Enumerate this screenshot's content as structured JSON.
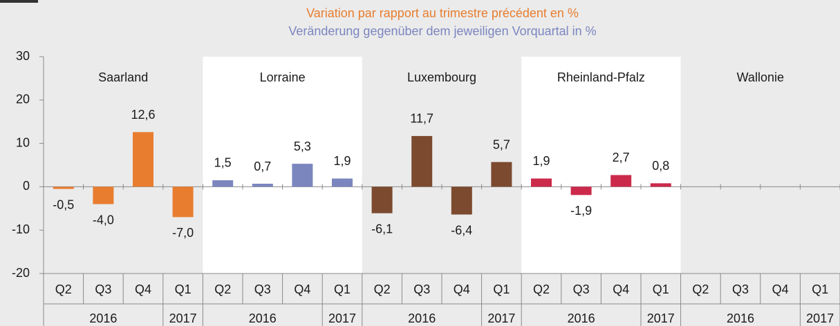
{
  "chart_data": {
    "type": "bar",
    "title": "Variation par rapport au trimestre précédent en %",
    "subtitle": "Veränderung gegenüber dem jeweiligen Vorquartal in %",
    "title_color": "#e87d2f",
    "subtitle_color": "#7b86bf",
    "ylim": [
      -20,
      30
    ],
    "yticks": [
      -20,
      -10,
      0,
      10,
      20,
      30
    ],
    "groups": [
      {
        "name": "Saarland",
        "color": "#e87d2f",
        "categories": [
          "Q2",
          "Q3",
          "Q4",
          "Q1"
        ],
        "years": [
          "2016",
          "2017"
        ],
        "values": [
          -0.5,
          -4.0,
          12.6,
          -7.0
        ],
        "value_labels": [
          "-0,5",
          "-4,0",
          "12,6",
          "-7,0"
        ]
      },
      {
        "name": "Lorraine",
        "color": "#7b86bf",
        "categories": [
          "Q2",
          "Q3",
          "Q4",
          "Q1"
        ],
        "years": [
          "2016",
          "2017"
        ],
        "values": [
          1.5,
          0.7,
          5.3,
          1.9
        ],
        "value_labels": [
          "1,5",
          "0,7",
          "5,3",
          "1,9"
        ]
      },
      {
        "name": "Luxembourg",
        "color": "#7b4a2f",
        "categories": [
          "Q2",
          "Q3",
          "Q4",
          "Q1"
        ],
        "years": [
          "2016",
          "2017"
        ],
        "values": [
          -6.1,
          11.7,
          -6.4,
          5.7
        ],
        "value_labels": [
          "-6,1",
          "11,7",
          "-6,4",
          "5,7"
        ]
      },
      {
        "name": "Rheinland-Pfalz",
        "color": "#cc2a4b",
        "categories": [
          "Q2",
          "Q3",
          "Q4",
          "Q1"
        ],
        "years": [
          "2016",
          "2017"
        ],
        "values": [
          1.9,
          -1.9,
          2.7,
          0.8
        ],
        "value_labels": [
          "1,9",
          "-1,9",
          "2,7",
          "0,8"
        ]
      },
      {
        "name": "Wallonie",
        "color": "#888888",
        "categories": [
          "Q2",
          "Q3",
          "Q4",
          "Q1"
        ],
        "years": [
          "2016",
          "2017"
        ],
        "values": [
          null,
          null,
          null,
          null
        ],
        "value_labels": [
          null,
          null,
          null,
          null
        ]
      }
    ]
  }
}
